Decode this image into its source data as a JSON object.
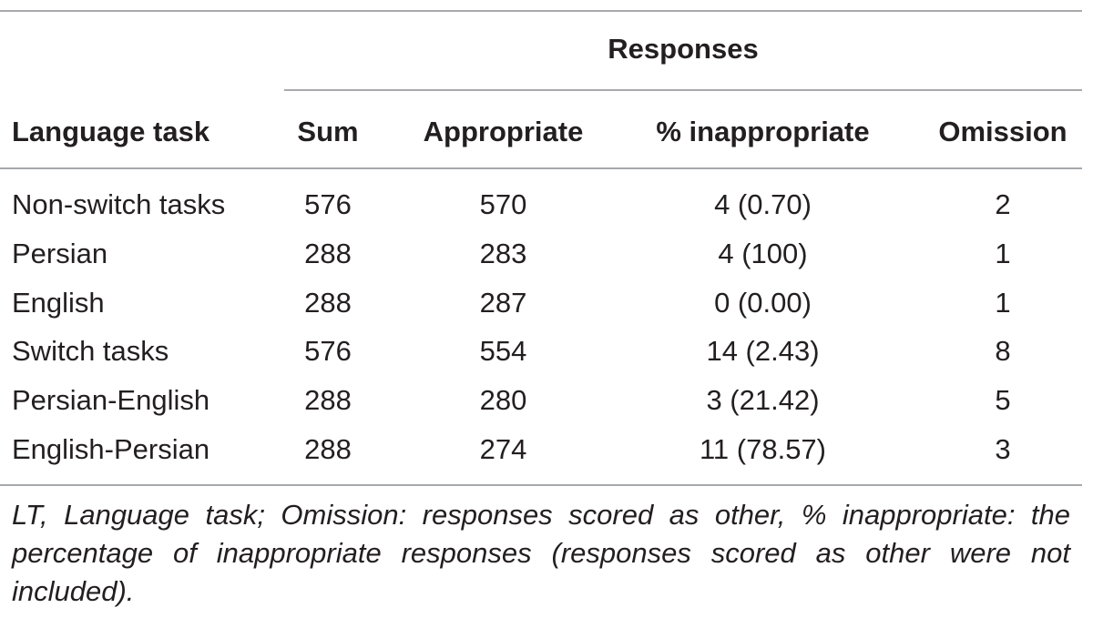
{
  "table": {
    "group_header": "Responses",
    "columns": [
      "Language task",
      "Sum",
      "Appropriate",
      "% inappropriate",
      "Omission"
    ],
    "rows": [
      [
        "Non-switch tasks",
        "576",
        "570",
        "4 (0.70)",
        "2"
      ],
      [
        "Persian",
        "288",
        "283",
        "4 (100)",
        "1"
      ],
      [
        "English",
        "288",
        "287",
        "0 (0.00)",
        "1"
      ],
      [
        "Switch tasks",
        "576",
        "554",
        "14 (2.43)",
        "8"
      ],
      [
        "Persian-English",
        "288",
        "280",
        "3 (21.42)",
        "5"
      ],
      [
        "English-Persian",
        "288",
        "274",
        "11 (78.57)",
        "3"
      ]
    ],
    "footnote": "LT, Language task; Omission: responses scored as other, % inappropriate: the percentage of inappropriate responses (responses scored as other were not included)."
  }
}
